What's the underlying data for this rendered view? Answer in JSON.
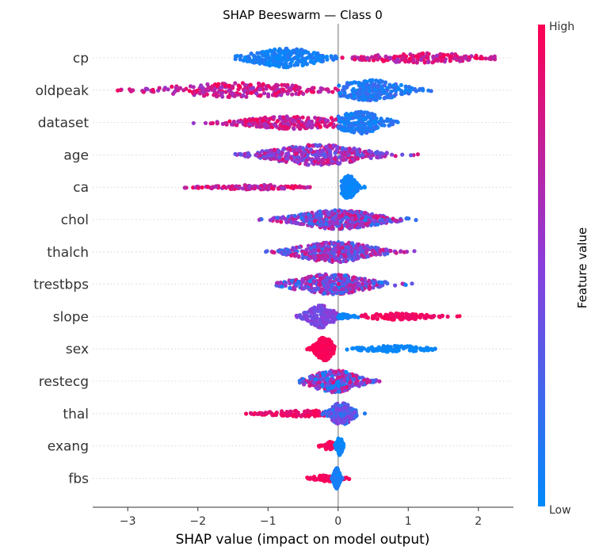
{
  "chart_data": {
    "type": "scatter",
    "title": "SHAP Beeswarm — Class 0",
    "xlabel": "SHAP value (impact on model output)",
    "xlim": [
      -3.5,
      2.5
    ],
    "xticks": [
      -3,
      -2,
      -1,
      0,
      1,
      2
    ],
    "colorbar": {
      "label": "Feature value",
      "high_label": "High",
      "low_label": "Low",
      "low_color": "#008bfb",
      "mid_color": "#8a3ddc",
      "high_color": "#ff0052"
    },
    "features": [
      {
        "name": "cp",
        "clusters": [
          {
            "range": [
              -1.5,
              0.0
            ],
            "center": -0.75,
            "spread": 0.35,
            "n": 260,
            "hf": [
              0.0,
              0.15
            ],
            "width": 12
          },
          {
            "range": [
              0.05,
              2.25
            ],
            "center": 1.2,
            "spread": 0.6,
            "n": 170,
            "hf": [
              0.6,
              1.0
            ],
            "width": 6
          }
        ]
      },
      {
        "name": "oldpeak",
        "clusters": [
          {
            "range": [
              -3.3,
              0.0
            ],
            "center": -1.4,
            "spread": 0.75,
            "n": 240,
            "hf": [
              0.55,
              1.0
            ],
            "width": 9
          },
          {
            "range": [
              0.0,
              1.35
            ],
            "center": 0.45,
            "spread": 0.35,
            "n": 220,
            "hf": [
              0.0,
              0.25
            ],
            "width": 13
          }
        ]
      },
      {
        "name": "dataset",
        "clusters": [
          {
            "range": [
              -2.3,
              0.0
            ],
            "center": -0.6,
            "spread": 0.6,
            "n": 230,
            "hf": [
              0.55,
              1.0
            ],
            "width": 8
          },
          {
            "range": [
              0.0,
              0.95
            ],
            "center": 0.3,
            "spread": 0.25,
            "n": 200,
            "hf": [
              0.0,
              0.2
            ],
            "width": 14
          }
        ]
      },
      {
        "name": "age",
        "clusters": [
          {
            "range": [
              -1.55,
              2.0
            ],
            "center": -0.3,
            "spread": 0.5,
            "n": 400,
            "hf": [
              0.25,
              0.9
            ],
            "width": 13
          }
        ]
      },
      {
        "name": "ca",
        "clusters": [
          {
            "range": [
              -2.2,
              -0.4
            ],
            "center": -1.2,
            "spread": 0.45,
            "n": 130,
            "hf": [
              0.55,
              1.0
            ],
            "width": 3
          },
          {
            "range": [
              0.05,
              0.42
            ],
            "center": 0.15,
            "spread": 0.08,
            "n": 160,
            "hf": [
              0.0,
              0.08
            ],
            "width": 15
          }
        ]
      },
      {
        "name": "chol",
        "clusters": [
          {
            "range": [
              -1.65,
              1.35
            ],
            "center": 0.0,
            "spread": 0.45,
            "n": 420,
            "hf": [
              0.1,
              0.9
            ],
            "width": 12
          }
        ]
      },
      {
        "name": "thalch",
        "clusters": [
          {
            "range": [
              -1.05,
              1.35
            ],
            "center": -0.05,
            "spread": 0.4,
            "n": 420,
            "hf": [
              0.15,
              0.85
            ],
            "width": 13
          }
        ]
      },
      {
        "name": "trestbps",
        "clusters": [
          {
            "range": [
              -0.9,
              1.8
            ],
            "center": -0.1,
            "spread": 0.4,
            "n": 380,
            "hf": [
              0.05,
              0.85
            ],
            "width": 13
          }
        ]
      },
      {
        "name": "slope",
        "clusters": [
          {
            "range": [
              -0.6,
              0.0
            ],
            "center": -0.25,
            "spread": 0.15,
            "n": 160,
            "hf": [
              0.35,
              0.55
            ],
            "width": 14
          },
          {
            "range": [
              0.0,
              0.4
            ],
            "center": 0.05,
            "spread": 0.1,
            "n": 50,
            "hf": [
              0.0,
              0.1
            ],
            "width": 3
          },
          {
            "range": [
              0.3,
              1.9
            ],
            "center": 0.8,
            "spread": 0.4,
            "n": 110,
            "hf": [
              0.9,
              1.0
            ],
            "width": 4
          }
        ]
      },
      {
        "name": "sex",
        "clusters": [
          {
            "range": [
              -0.45,
              -0.05
            ],
            "center": -0.2,
            "spread": 0.09,
            "n": 240,
            "hf": [
              0.95,
              1.0
            ],
            "width": 15
          },
          {
            "range": [
              0.1,
              1.4
            ],
            "center": 0.8,
            "spread": 0.35,
            "n": 120,
            "hf": [
              0.0,
              0.05
            ],
            "width": 4
          }
        ]
      },
      {
        "name": "restecg",
        "clusters": [
          {
            "range": [
              -0.6,
              0.75
            ],
            "center": -0.05,
            "spread": 0.25,
            "n": 330,
            "hf": [
              0.0,
              0.9
            ],
            "width": 14
          }
        ]
      },
      {
        "name": "thal",
        "clusters": [
          {
            "range": [
              -1.4,
              -0.1
            ],
            "center": -0.45,
            "spread": 0.4,
            "n": 110,
            "hf": [
              0.85,
              1.0
            ],
            "width": 4
          },
          {
            "range": [
              -0.3,
              0.45
            ],
            "center": 0.05,
            "spread": 0.12,
            "n": 230,
            "hf": [
              0.1,
              0.55
            ],
            "width": 14
          }
        ]
      },
      {
        "name": "exang",
        "clusters": [
          {
            "range": [
              -0.28,
              -0.02
            ],
            "center": -0.12,
            "spread": 0.07,
            "n": 70,
            "hf": [
              0.9,
              1.0
            ],
            "width": 5
          },
          {
            "range": [
              -0.05,
              0.12
            ],
            "center": 0.02,
            "spread": 0.03,
            "n": 90,
            "hf": [
              0.0,
              0.08
            ],
            "width": 12
          }
        ]
      },
      {
        "name": "fbs",
        "clusters": [
          {
            "range": [
              -0.45,
              0.38
            ],
            "center": -0.15,
            "spread": 0.15,
            "n": 90,
            "hf": [
              0.9,
              1.0
            ],
            "width": 4
          },
          {
            "range": [
              -0.12,
              0.12
            ],
            "center": -0.02,
            "spread": 0.03,
            "n": 200,
            "hf": [
              0.0,
              0.15
            ],
            "width": 13
          }
        ]
      }
    ]
  }
}
